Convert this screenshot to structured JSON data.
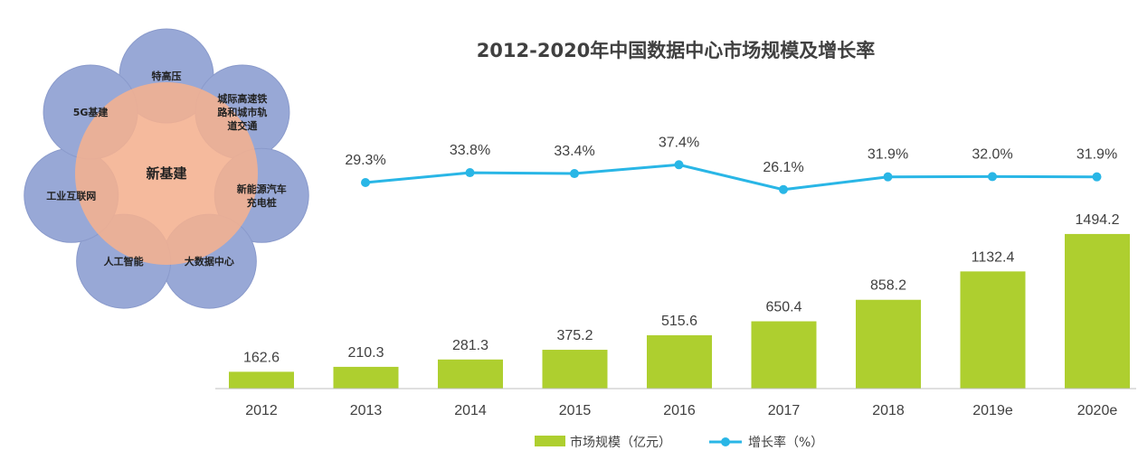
{
  "diagram": {
    "center": "新基建",
    "petals": [
      {
        "lines": [
          "特高压"
        ]
      },
      {
        "lines": [
          "城际高速铁",
          "路和城市轨",
          "道交通"
        ]
      },
      {
        "lines": [
          "新能源汽车",
          "充电桩"
        ]
      },
      {
        "lines": [
          "大数据中心"
        ]
      },
      {
        "lines": [
          "人工智能"
        ]
      },
      {
        "lines": [
          "工业互联网"
        ]
      },
      {
        "lines": [
          "5G基建"
        ]
      }
    ],
    "colors": {
      "center": "#f4b08f",
      "petal": "#98a8d6",
      "petal_stroke": "#8a9acb"
    }
  },
  "chart_data": {
    "type": "bar",
    "title": "2012-2020年中国数据中心市场规模及增长率",
    "categories": [
      "2012",
      "2013",
      "2014",
      "2015",
      "2016",
      "2017",
      "2018",
      "2019e",
      "2020e"
    ],
    "series": [
      {
        "name": "市场规模（亿元）",
        "type": "bar",
        "color": "#aecf2f",
        "values": [
          162.6,
          210.3,
          281.3,
          375.2,
          515.6,
          650.4,
          858.2,
          1132.4,
          1494.2
        ]
      },
      {
        "name": "增长率（%）",
        "type": "line",
        "color": "#29b6e6",
        "values": [
          null,
          29.3,
          33.8,
          33.4,
          37.4,
          26.1,
          31.9,
          32.0,
          31.9
        ],
        "labels": [
          "",
          "29.3%",
          "33.8%",
          "33.4%",
          "37.4%",
          "26.1%",
          "31.9%",
          "32.0%",
          "31.9%"
        ]
      }
    ],
    "bar_labels": [
      "162.6",
      "210.3",
      "281.3",
      "375.2",
      "515.6",
      "650.4",
      "858.2",
      "1132.4",
      "1494.2"
    ],
    "legend": [
      "市场规模（亿元）",
      "增长率（%）"
    ],
    "legend_position": "bottom",
    "grid": false
  }
}
